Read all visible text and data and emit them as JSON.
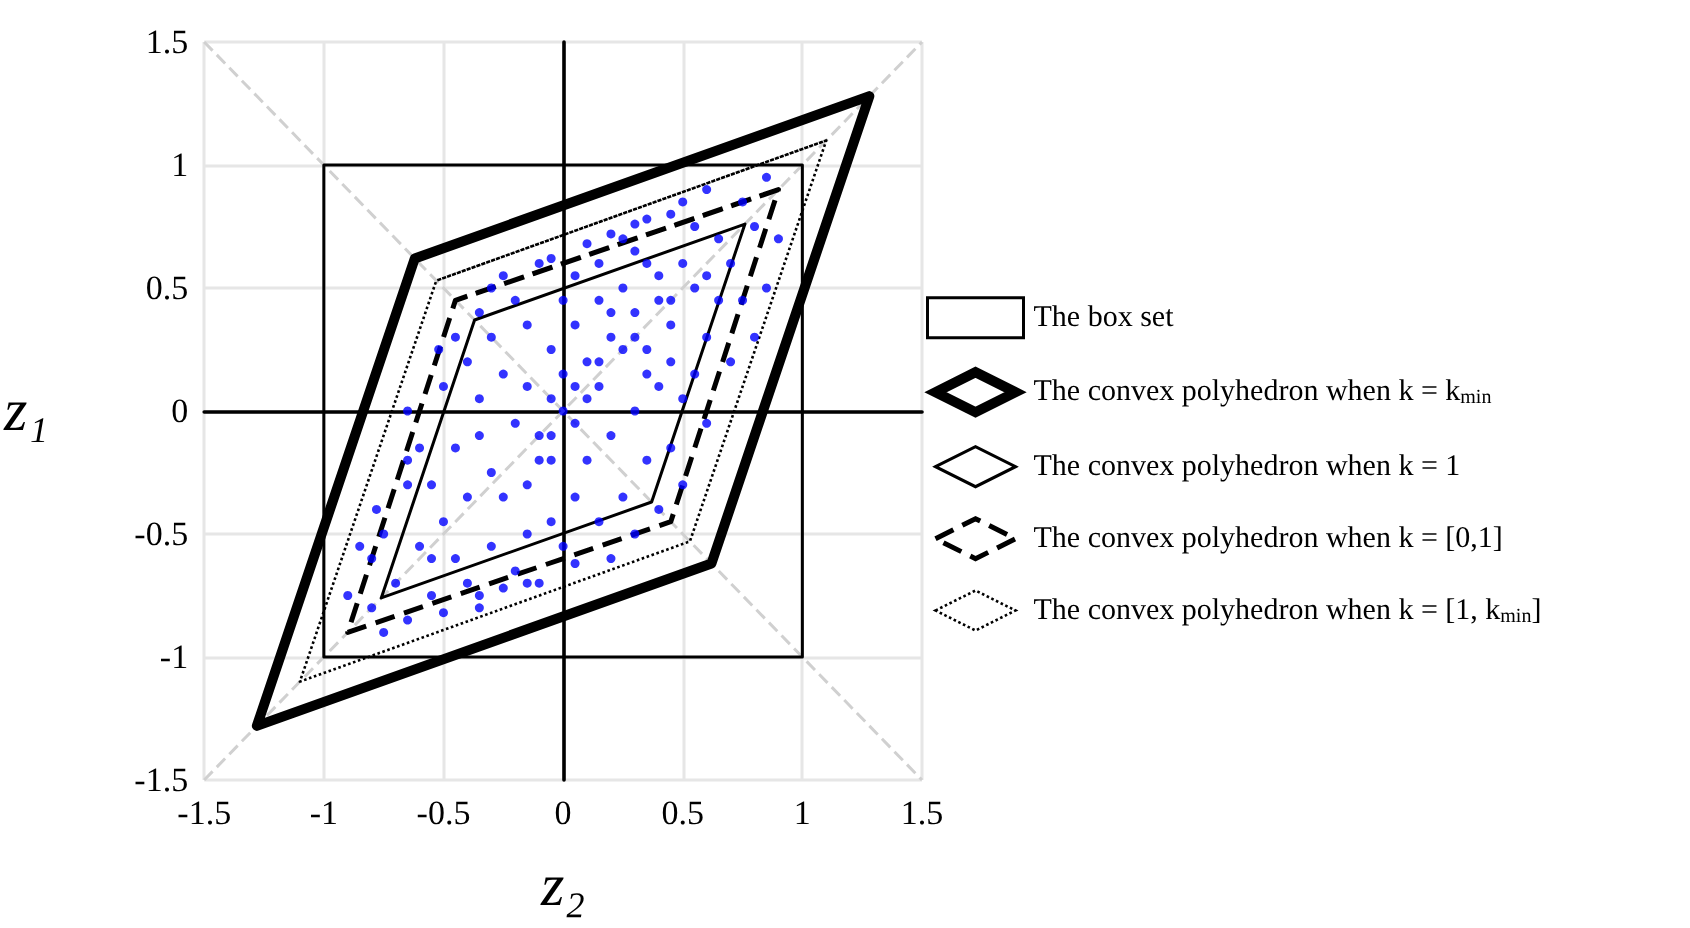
{
  "chart_data": {
    "type": "line",
    "xlabel": "z₂",
    "ylabel": "z₁",
    "xlim": [
      -1.5,
      1.5
    ],
    "ylim": [
      -1.5,
      1.5
    ],
    "xticks": [
      -1.5,
      -1,
      -0.5,
      0,
      0.5,
      1,
      1.5
    ],
    "yticks": [
      -1.5,
      -1,
      -0.5,
      0,
      0.5,
      1,
      1.5
    ],
    "grid": true,
    "legend": "right",
    "marker": "none",
    "series": [
      {
        "color": "#d0d0d0",
        "line_style": "dashed",
        "x": [
          -1.5,
          1.5
        ],
        "values": [
          -1.5,
          1.5
        ]
      },
      {
        "color": "#d0d0d0",
        "line_style": "dashed",
        "x": [
          -1.5,
          1.5
        ],
        "values": [
          1.5,
          -1.5
        ]
      },
      {
        "name": "The box set",
        "color": "#000000",
        "line_style": "solid",
        "x": [
          -1,
          1,
          1,
          -1,
          -1
        ],
        "values": [
          1,
          1,
          -1,
          -1,
          1
        ]
      },
      {
        "name": "The convex polyhedron when k = k$_{min}$",
        "color": "#000000",
        "line_style": "solid",
        "x": [
          1.28,
          -0.62,
          -1.28,
          0.62,
          1.28
        ],
        "values": [
          1.28,
          0.62,
          -1.28,
          -0.62,
          1.28
        ]
      },
      {
        "name": "The convex polyhedron when k = 1",
        "color": "#000000",
        "line_style": "solid",
        "x": [
          0.76,
          -0.37,
          -0.76,
          0.37,
          0.76
        ],
        "values": [
          0.76,
          0.37,
          -0.76,
          -0.37,
          0.76
        ]
      },
      {
        "name": "The convex polyhedron when k = [0,1]",
        "color": "#000000",
        "line_style": "dashed",
        "x": [
          0.9,
          -0.45,
          -0.9,
          0.45,
          0.9
        ],
        "values": [
          0.9,
          0.45,
          -0.9,
          -0.45,
          0.9
        ]
      },
      {
        "name": "The convex polyhedron when k = [1, k$_{min}$]",
        "color": "#000000",
        "line_style": "dotted",
        "x": [
          1.1,
          -0.53,
          -1.1,
          0.53,
          1.1
        ],
        "values": [
          1.1,
          0.53,
          -1.1,
          -0.53,
          1.1
        ]
      },
      {
        "type": "scatter",
        "color": "#0000ff",
        "marker": "circle",
        "x": [
          0,
          0.05,
          -0.05,
          0.1,
          -0.1,
          0.2,
          0.3,
          0.35,
          0.25,
          0.4,
          0.45,
          0.5,
          0.3,
          0.15,
          0.05,
          -0.05,
          -0.15,
          -0.25,
          -0.35,
          -0.2,
          -0.3,
          -0.4,
          -0.5,
          -0.45,
          -0.6,
          -0.55,
          -0.65,
          -0.75,
          -0.8,
          -0.78,
          -0.65,
          -0.6,
          -0.5,
          -0.45,
          -0.35,
          -0.25,
          -0.1,
          0.1,
          0.2,
          0.35,
          0.45,
          0.55,
          0.6,
          0.75,
          0.85,
          0.7,
          0.65,
          0.6,
          0.55,
          0.5,
          0.4,
          0.3,
          0.2,
          0.1,
          0.05,
          -0.05,
          -0.15,
          -0.2,
          -0.1,
          0,
          0.15,
          0.25,
          0.35,
          0.45,
          0.3,
          0.2,
          -0.3,
          -0.4,
          -0.25,
          -0.5,
          -0.35,
          -0.9,
          -0.85,
          -0.75,
          -0.65,
          -0.65,
          -0.52,
          -0.4,
          -0.3,
          -0.15,
          0,
          0.05,
          0.15,
          0.25,
          0.35,
          0.45,
          0.55,
          0.65,
          0.8,
          0.9,
          0.75,
          0.85,
          0.8,
          0.7,
          0.6,
          0.5,
          0.4,
          0.1,
          -0.05,
          0,
          0.05,
          -0.1,
          0.15,
          0.2,
          0.3,
          0.4,
          0.35,
          0.25,
          0.15,
          -0.2,
          -0.3,
          -0.05,
          0.5,
          0.3,
          0.6,
          0.45,
          -0.55,
          -0.45,
          -0.35,
          -0.25,
          -0.15,
          -0.05,
          -0.7,
          -0.8,
          -0.55,
          -0.35,
          -0.15,
          0.05
        ],
        "values": [
          0,
          0.1,
          -0.1,
          0.2,
          -0.2,
          0.3,
          0.4,
          0.25,
          0.5,
          0.55,
          0.35,
          0.6,
          0.65,
          0.45,
          0.35,
          0.25,
          0.1,
          0.15,
          0.05,
          -0.05,
          -0.25,
          -0.35,
          -0.45,
          -0.6,
          -0.55,
          -0.75,
          -0.85,
          -0.9,
          -0.6,
          -0.4,
          -0.3,
          -0.15,
          0.1,
          0.3,
          0.4,
          0.55,
          0.6,
          0.68,
          0.72,
          0.78,
          0.8,
          0.75,
          0.9,
          0.85,
          0.95,
          0.6,
          0.45,
          0.3,
          0.15,
          0.05,
          0.1,
          0,
          -0.1,
          -0.2,
          -0.35,
          -0.45,
          -0.5,
          -0.65,
          -0.7,
          -0.55,
          -0.45,
          -0.35,
          -0.2,
          -0.15,
          -0.5,
          -0.6,
          -0.55,
          -0.7,
          -0.72,
          -0.82,
          -0.8,
          -0.75,
          -0.55,
          -0.5,
          -0.2,
          0,
          0.25,
          0.2,
          0.3,
          0.35,
          0.45,
          0.55,
          0.2,
          0.25,
          0.15,
          0.45,
          0.5,
          0.7,
          0.75,
          0.7,
          0.45,
          0.5,
          0.3,
          0.2,
          -0.05,
          -0.3,
          -0.4,
          0.05,
          0.05,
          0.15,
          -0.05,
          -0.1,
          0.1,
          0.4,
          0.3,
          0.45,
          0.6,
          0.7,
          0.6,
          0.45,
          0.5,
          0.62,
          0.85,
          0.76,
          0.55,
          0.2,
          -0.3,
          -0.15,
          -0.1,
          -0.35,
          -0.3,
          -0.2,
          -0.7,
          -0.8,
          -0.6,
          -0.75,
          -0.7,
          -0.62
        ]
      }
    ]
  }
}
